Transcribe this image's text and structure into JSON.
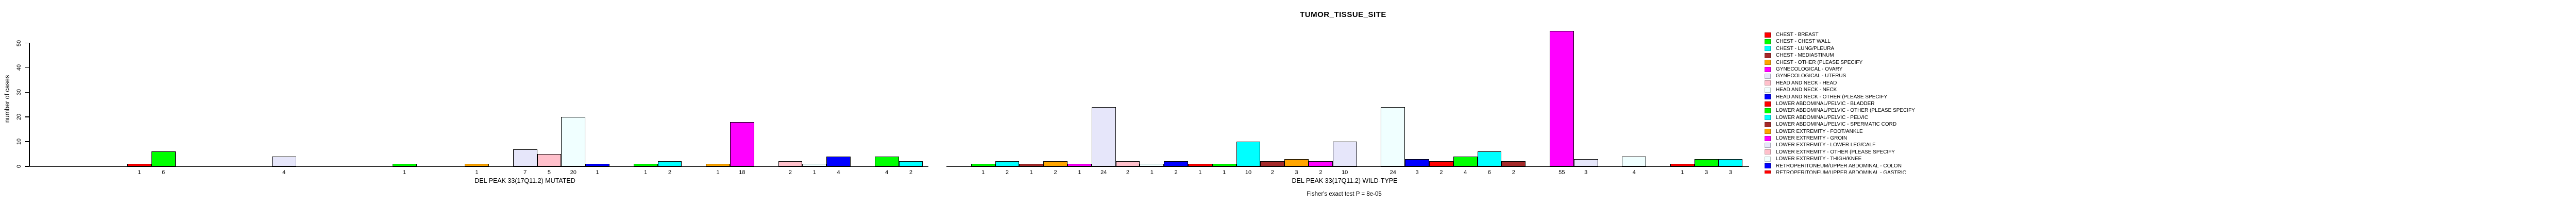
{
  "chart_data": {
    "type": "bar",
    "title": "TUMOR_TISSUE_SITE",
    "ylabel": "number of cases",
    "ylim": [
      0,
      50
    ],
    "yticks": [
      0,
      10,
      20,
      30,
      40,
      50
    ],
    "grid": false,
    "legend_position": "right",
    "palette_cycle": [
      "#FF0000",
      "#00FF00",
      "#00FFFF",
      "#A52A2A",
      "#FFA500",
      "#FF00FF",
      "#E6E6FA",
      "#FFC0CB",
      "#F0FFFF",
      "#0000FF"
    ],
    "groups": [
      {
        "label": "DEL PEAK 33(17Q11.2) MUTATED",
        "counts": [
          1,
          6,
          0,
          0,
          0,
          0,
          4,
          0,
          0,
          0,
          0,
          1,
          0,
          0,
          1,
          0,
          7,
          5,
          20,
          1,
          0,
          1,
          2,
          0,
          1,
          18,
          0,
          2,
          1,
          4,
          0,
          4,
          2
        ]
      },
      {
        "label": "DEL PEAK 33(17Q11.2) WILD-TYPE",
        "counts": [
          0,
          1,
          2,
          1,
          2,
          1,
          24,
          2,
          1,
          2,
          1,
          1,
          10,
          2,
          3,
          2,
          10,
          0,
          24,
          3,
          2,
          4,
          6,
          2,
          0,
          55,
          3,
          0,
          4,
          0,
          1,
          3,
          3
        ]
      }
    ],
    "legend": [
      {
        "label": "CHEST - BREAST",
        "color": "#FF0000"
      },
      {
        "label": "CHEST - CHEST WALL",
        "color": "#00FF00"
      },
      {
        "label": "CHEST - LUNG/PLEURA",
        "color": "#00FFFF"
      },
      {
        "label": "CHEST - MEDIASTINUM",
        "color": "#A52A2A"
      },
      {
        "label": "CHEST - OTHER (PLEASE SPECIFY",
        "color": "#FFA500"
      },
      {
        "label": "GYNECOLOGICAL - OVARY",
        "color": "#FF00FF"
      },
      {
        "label": "GYNECOLOGICAL - UTERUS",
        "color": "#E6E6FA"
      },
      {
        "label": "HEAD AND NECK - HEAD",
        "color": "#FFC0CB"
      },
      {
        "label": "HEAD AND NECK - NECK",
        "color": "#F0FFFF"
      },
      {
        "label": "HEAD AND NECK - OTHER (PLEASE SPECIFY",
        "color": "#0000FF"
      },
      {
        "label": "LOWER ABDOMINAL/PELVIC - BLADDER",
        "color": "#FF0000"
      },
      {
        "label": "LOWER ABDOMINAL/PELVIC - OTHER (PLEASE SPECIFY",
        "color": "#00FF00"
      },
      {
        "label": "LOWER ABDOMINAL/PELVIC - PELVIC",
        "color": "#00FFFF"
      },
      {
        "label": "LOWER ABDOMINAL/PELVIC - SPERMATIC CORD",
        "color": "#A52A2A"
      },
      {
        "label": "LOWER EXTREMITY - FOOT/ANKLE",
        "color": "#FFA500"
      },
      {
        "label": "LOWER EXTREMITY - GROIN",
        "color": "#FF00FF"
      },
      {
        "label": "LOWER EXTREMITY - LOWER LEG/CALF",
        "color": "#E6E6FA"
      },
      {
        "label": "LOWER EXTREMITY - OTHER (PLEASE SPECIFY",
        "color": "#FFC0CB"
      },
      {
        "label": "LOWER EXTREMITY - THIGH/KNEE",
        "color": "#F0FFFF"
      },
      {
        "label": "RETROPERITONEUM/UPPER ABDOMINAL - COLON",
        "color": "#0000FF"
      },
      {
        "label": "RETROPERITONEUM/UPPER ABDOMINAL - GASTRIC",
        "color": "#FF0000",
        "clipped": true
      }
    ],
    "footnote": "Fisher's exact test P = 8e-05"
  }
}
